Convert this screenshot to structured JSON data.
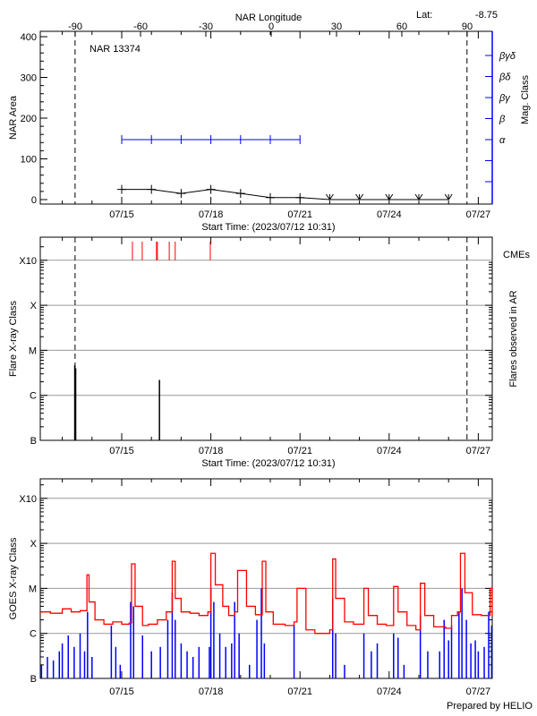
{
  "header": {
    "lat_label": "Lat:",
    "lat_value": "-8.75"
  },
  "footer": {
    "credit": "Prepared by HELIO"
  },
  "colors": {
    "area": "#000000",
    "mag_class": "#0000ff",
    "cme": "#ff0000",
    "goes_long": "#ff0000",
    "goes_short": "#0000ff",
    "grid": "#999999"
  },
  "chart_data": [
    {
      "type": "line",
      "title": "NAR 13374",
      "top_axis_label": "NAR Longitude",
      "top_ticks": [
        "-90",
        "-60",
        "-30",
        "0",
        "30",
        "60",
        "90"
      ],
      "top_tick_values": [
        -90,
        -60,
        -30,
        0,
        30,
        60,
        90
      ],
      "xlabel": "Start Time: (2023/07/12 10:31)",
      "x_ticks": [
        "07/15",
        "07/18",
        "07/21",
        "07/24",
        "07/27"
      ],
      "x_tick_days": [
        15,
        18,
        21,
        24,
        27
      ],
      "xlim_days_of_july": [
        12.26,
        27.47
      ],
      "ylabel": "NAR Area",
      "ylim": [
        0,
        400
      ],
      "y_ticks": [
        "0",
        "100",
        "200",
        "300",
        "400"
      ],
      "y2label": "Mag. Class",
      "y2_ticks": [
        "α",
        "β",
        "βγ",
        "βδ",
        "βγδ"
      ],
      "limb_days_of_july": [
        13.43,
        26.62
      ],
      "area_series": {
        "x": [
          15,
          16,
          17,
          18,
          19,
          20,
          21
        ],
        "values": [
          25,
          25,
          15,
          25,
          15,
          5,
          5
        ]
      },
      "area_zero_markers": {
        "x": [
          22,
          23,
          24,
          25,
          26
        ],
        "values": [
          0,
          0,
          0,
          0,
          0
        ]
      },
      "mag_series": {
        "x": [
          15,
          16,
          17,
          18,
          19,
          20,
          21
        ],
        "values": [
          "α",
          "α",
          "α",
          "α",
          "α",
          "α",
          "α"
        ]
      }
    },
    {
      "type": "bar",
      "xlabel": "Start Time: (2023/07/12 10:31)",
      "x_ticks": [
        "07/15",
        "07/18",
        "07/21",
        "07/24",
        "07/27"
      ],
      "x_tick_days": [
        15,
        18,
        21,
        24,
        27
      ],
      "ylabel": "Flare X-ray Class",
      "y2label": "Flares observed in AR",
      "y_ticks": [
        "B",
        "C",
        "M",
        "X",
        "X10"
      ],
      "y_tick_flux": [
        1e-07,
        1e-06,
        1e-05,
        0.0001,
        0.001
      ],
      "grid": true,
      "flares": {
        "x": [
          13.42,
          13.45,
          16.27
        ],
        "flux": [
          4.7e-06,
          4e-06,
          2.2e-06
        ]
      },
      "cme_label": "CMEs",
      "cmes": {
        "x": [
          15.36,
          15.69,
          16.17,
          16.2,
          16.6,
          16.8,
          17.98
        ]
      }
    },
    {
      "type": "line",
      "ylabel": "GOES X-ray Class",
      "x_ticks": [
        "07/15",
        "07/18",
        "07/21",
        "07/24",
        "07/27"
      ],
      "x_tick_days": [
        15,
        18,
        21,
        24,
        27
      ],
      "y_ticks": [
        "B",
        "C",
        "M",
        "X",
        "X10"
      ],
      "y_tick_flux": [
        1e-07,
        1e-06,
        1e-05,
        0.0001,
        0.001
      ],
      "grid": true,
      "series": [
        {
          "channel": "long",
          "x": [
            12.26,
            12.6,
            13.0,
            13.3,
            13.6,
            13.83,
            13.9,
            14.1,
            14.4,
            14.7,
            15.0,
            15.25,
            15.33,
            15.45,
            15.7,
            15.9,
            16.2,
            16.5,
            16.7,
            16.8,
            17.0,
            17.3,
            17.6,
            17.9,
            18.0,
            18.15,
            18.4,
            18.6,
            18.8,
            18.9,
            19.2,
            19.5,
            19.73,
            19.85,
            20.1,
            20.5,
            20.8,
            20.9,
            21.2,
            21.5,
            21.8,
            22.0,
            22.1,
            22.2,
            22.5,
            22.8,
            23.15,
            23.3,
            23.6,
            23.9,
            24.15,
            24.3,
            24.6,
            24.9,
            25.05,
            25.2,
            25.5,
            25.9,
            26.1,
            26.3,
            26.4,
            26.55,
            26.8,
            27.1,
            27.4,
            27.47
          ],
          "flux": [
            3e-06,
            2.8e-06,
            3.5e-06,
            3e-06,
            3.2e-06,
            2e-05,
            5e-06,
            2e-06,
            1.6e-06,
            1.8e-06,
            1.6e-06,
            1.7e-06,
            3.5e-05,
            4e-06,
            1.5e-06,
            1.6e-06,
            2e-06,
            3e-06,
            4e-05,
            6e-06,
            3e-06,
            2.8e-06,
            2.5e-06,
            3e-06,
            6e-05,
            1.2e-05,
            4e-06,
            2.5e-06,
            3e-06,
            2.5e-05,
            4e-06,
            2.6e-06,
            4e-05,
            3e-06,
            1.6e-06,
            1.5e-06,
            1.8e-06,
            1e-05,
            1.2e-06,
            1e-06,
            1e-06,
            1.2e-06,
            4.5e-05,
            6e-06,
            1.8e-06,
            1.6e-06,
            1e-05,
            2.5e-06,
            1.6e-06,
            1.5e-06,
            1.1e-05,
            3e-06,
            1.5e-06,
            1.2e-06,
            1.3e-05,
            2.5e-06,
            1.4e-06,
            1.3e-06,
            2.5e-06,
            3e-06,
            6e-05,
            8e-06,
            2.6e-06,
            2.5e-06,
            1e-05,
            2.5e-06
          ]
        },
        {
          "channel": "short",
          "x": [
            12.3,
            12.5,
            12.7,
            12.9,
            13.0,
            13.2,
            13.4,
            13.6,
            13.75,
            13.85,
            14.0,
            14.3,
            14.65,
            14.8,
            14.95,
            15.3,
            15.4,
            15.7,
            16.0,
            16.3,
            16.55,
            16.7,
            16.8,
            17.0,
            17.2,
            17.4,
            17.6,
            17.95,
            18.0,
            18.1,
            18.3,
            18.5,
            18.7,
            18.8,
            18.95,
            19.3,
            19.55,
            19.7,
            19.8,
            20.8,
            21.3,
            22.1,
            22.2,
            22.5,
            23.15,
            23.4,
            23.6,
            24.15,
            24.3,
            24.5,
            25.05,
            25.3,
            25.7,
            25.85,
            26.0,
            26.1,
            26.35,
            26.45,
            26.6,
            26.75,
            26.9,
            27.0,
            27.2,
            27.35,
            27.45
          ],
          "flux": [
            2e-07,
            3e-07,
            2.5e-07,
            4e-07,
            6e-07,
            9e-07,
            5e-07,
            1e-06,
            4e-07,
            3e-06,
            3e-07,
            1e-07,
            1.5e-06,
            5e-07,
            2e-07,
            5e-06,
            4e-06,
            9e-07,
            4e-07,
            5e-07,
            2e-06,
            8e-06,
            2e-06,
            6e-07,
            4e-07,
            3e-07,
            5e-07,
            5e-07,
            1e-05,
            5e-06,
            1e-06,
            5e-07,
            6e-07,
            5e-06,
            1e-06,
            2e-07,
            2e-06,
            1e-05,
            6e-07,
            1.5e-06,
            1e-07,
            6e-06,
            1e-06,
            2e-07,
            1e-06,
            4e-07,
            6e-07,
            1e-06,
            8e-07,
            2e-07,
            2.5e-06,
            4e-07,
            4e-07,
            2e-06,
            7e-07,
            1.5e-06,
            3e-06,
            1e-05,
            2e-06,
            6e-07,
            7e-07,
            4e-07,
            5e-07,
            3e-06,
            1.5e-06
          ]
        }
      ]
    }
  ]
}
